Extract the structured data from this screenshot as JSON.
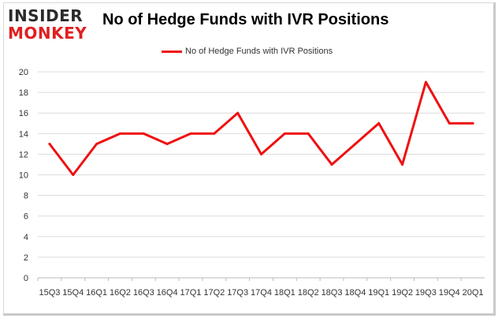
{
  "logo": {
    "top_word": "INSIDER",
    "bottom_word": "MONKEY",
    "colors": {
      "top": "#2b2b2b",
      "bottom": "#e02020"
    }
  },
  "chart_data": {
    "type": "line",
    "title": "No of Hedge Funds with IVR Positions",
    "xlabel": "",
    "ylabel": "",
    "categories": [
      "15Q3",
      "15Q4",
      "16Q1",
      "16Q2",
      "16Q3",
      "16Q4",
      "17Q1",
      "17Q2",
      "17Q3",
      "17Q4",
      "18Q1",
      "18Q2",
      "18Q3",
      "18Q4",
      "19Q1",
      "19Q2",
      "19Q3",
      "19Q4",
      "20Q1"
    ],
    "series": [
      {
        "name": "No of Hedge Funds with IVR Positions",
        "color": "#ee1111",
        "values": [
          13,
          10,
          13,
          14,
          14,
          13,
          14,
          14,
          16,
          12,
          14,
          14,
          11,
          13,
          15,
          11,
          19,
          15,
          15
        ]
      }
    ],
    "ylim": [
      0,
      20
    ],
    "yticks": [
      0,
      2,
      4,
      6,
      8,
      10,
      12,
      14,
      16,
      18,
      20
    ],
    "grid": true,
    "legend": "top-center"
  }
}
